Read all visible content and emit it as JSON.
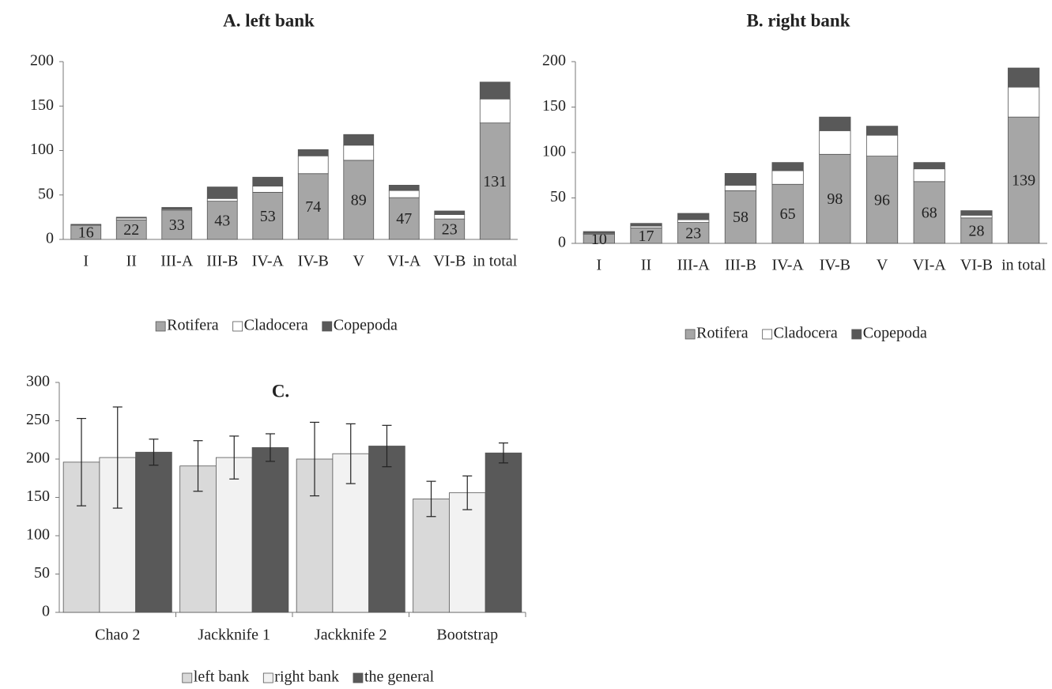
{
  "chart_data": [
    {
      "type": "bar",
      "stacked": true,
      "title": "A. left bank",
      "categories": [
        "I",
        "II",
        "III-A",
        "III-B",
        "IV-A",
        "IV-B",
        "V",
        "VI-A",
        "VI-B",
        "in total"
      ],
      "series": [
        {
          "name": "Rotifera",
          "color": "#a6a6a6",
          "show_labels": true,
          "values": [
            16,
            22,
            33,
            43,
            53,
            74,
            89,
            47,
            23,
            131
          ]
        },
        {
          "name": "Cladocera",
          "color": "#ffffff",
          "values": [
            0,
            2,
            1,
            3,
            7,
            20,
            17,
            8,
            5,
            27
          ]
        },
        {
          "name": "Copepoda",
          "color": "#595959",
          "values": [
            1,
            1,
            2,
            13,
            10,
            7,
            12,
            6,
            4,
            19
          ]
        }
      ],
      "ylim": [
        0,
        200
      ],
      "yticks": [
        0,
        50,
        100,
        150,
        200
      ],
      "grid": false,
      "legend": "bottom"
    },
    {
      "type": "bar",
      "stacked": true,
      "title": "B. right bank",
      "categories": [
        "I",
        "II",
        "III-A",
        "III-B",
        "IV-A",
        "IV-B",
        "V",
        "VI-A",
        "VI-B",
        "in total"
      ],
      "series": [
        {
          "name": "Rotifera",
          "color": "#a6a6a6",
          "show_labels": true,
          "values": [
            10,
            17,
            23,
            58,
            65,
            98,
            96,
            68,
            28,
            139
          ]
        },
        {
          "name": "Cladocera",
          "color": "#ffffff",
          "values": [
            1,
            2,
            3,
            6,
            15,
            26,
            23,
            14,
            3,
            33
          ]
        },
        {
          "name": "Copepoda",
          "color": "#595959",
          "values": [
            2,
            3,
            7,
            13,
            9,
            15,
            10,
            7,
            5,
            21
          ]
        }
      ],
      "ylim": [
        0,
        200
      ],
      "yticks": [
        0,
        50,
        100,
        150,
        200
      ],
      "grid": false,
      "legend": "bottom"
    },
    {
      "type": "bar",
      "stacked": false,
      "title": "C.",
      "categories": [
        "Chao 2",
        "Jackknife 1",
        "Jackknife 2",
        "Bootstrap"
      ],
      "series": [
        {
          "name": "left bank",
          "color": "#d9d9d9",
          "values": [
            196,
            191,
            200,
            148
          ],
          "errors": [
            57,
            33,
            48,
            23
          ]
        },
        {
          "name": "right bank",
          "color": "#f2f2f2",
          "values": [
            202,
            202,
            207,
            156
          ],
          "errors": [
            66,
            28,
            39,
            22
          ]
        },
        {
          "name": "the general",
          "color": "#595959",
          "values": [
            209,
            215,
            217,
            208
          ],
          "errors": [
            17,
            18,
            27,
            13
          ]
        }
      ],
      "ylim": [
        0,
        300
      ],
      "yticks": [
        0,
        50,
        100,
        150,
        200,
        250,
        300
      ],
      "grid": false,
      "legend": "bottom"
    }
  ]
}
